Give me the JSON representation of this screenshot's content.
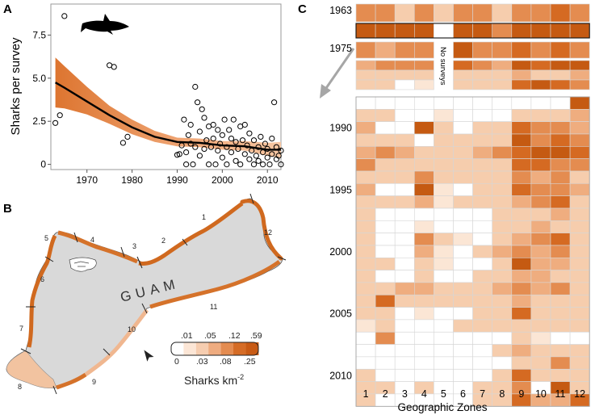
{
  "chart_data": [
    {
      "panel": "A",
      "type": "scatter",
      "title": "",
      "xlabel": "",
      "ylabel": "Sharks per survey",
      "xlim": [
        1962,
        2013
      ],
      "ylim": [
        -0.3,
        9.3
      ],
      "xticks": [
        1970,
        1980,
        1990,
        2000,
        2010
      ],
      "yticks": [
        0,
        2.5,
        5,
        7.5
      ],
      "ytick_labels": [
        "0",
        "2.5",
        "5.0",
        "7.5"
      ],
      "points": [
        [
          1963,
          2.4
        ],
        [
          1964,
          2.85
        ],
        [
          1965,
          8.6
        ],
        [
          1975,
          5.75
        ],
        [
          1976,
          5.65
        ],
        [
          1978,
          1.25
        ],
        [
          1979,
          1.6
        ],
        [
          1990,
          0.55
        ],
        [
          1990.5,
          0.6
        ],
        [
          1991,
          1.1
        ],
        [
          1991.5,
          2.6
        ],
        [
          1992,
          0.0
        ],
        [
          1992,
          0.7
        ],
        [
          1992.5,
          1.7
        ],
        [
          1993,
          1.2
        ],
        [
          1993,
          2.3
        ],
        [
          1993.5,
          0.0
        ],
        [
          1994,
          4.5
        ],
        [
          1994,
          1.0
        ],
        [
          1994.5,
          3.6
        ],
        [
          1995,
          0.5
        ],
        [
          1995,
          1.9
        ],
        [
          1995.5,
          3.2
        ],
        [
          1996,
          0.9
        ],
        [
          1996,
          2.7
        ],
        [
          1996.5,
          1.4
        ],
        [
          1997,
          0.0
        ],
        [
          1997,
          2.2
        ],
        [
          1997.5,
          1.0
        ],
        [
          1998,
          1.5
        ],
        [
          1998,
          2.3
        ],
        [
          1998.5,
          0.0
        ],
        [
          1999,
          0.8
        ],
        [
          1999,
          2.0
        ],
        [
          1999.5,
          1.2
        ],
        [
          2000,
          0.4
        ],
        [
          2000,
          1.7
        ],
        [
          2000.5,
          2.6
        ],
        [
          2001,
          0.0
        ],
        [
          2001,
          1.0
        ],
        [
          2001.5,
          2.0
        ],
        [
          2002,
          0.7
        ],
        [
          2002,
          1.5
        ],
        [
          2002.5,
          2.6
        ],
        [
          2003,
          0.2
        ],
        [
          2003,
          1.3
        ],
        [
          2003.5,
          0.9
        ],
        [
          2004,
          2.2
        ],
        [
          2004,
          0.0
        ],
        [
          2004.5,
          1.4
        ],
        [
          2005,
          0.6
        ],
        [
          2005,
          2.3
        ],
        [
          2005.5,
          1.1
        ],
        [
          2006,
          0.3
        ],
        [
          2006,
          1.8
        ],
        [
          2006.5,
          0.8
        ],
        [
          2007,
          0.0
        ],
        [
          2007,
          1.4
        ],
        [
          2007.5,
          0.5
        ],
        [
          2008,
          1.0
        ],
        [
          2008,
          0.2
        ],
        [
          2008.5,
          1.6
        ],
        [
          2009,
          0.7
        ],
        [
          2009,
          0.0
        ],
        [
          2009.5,
          1.2
        ],
        [
          2010,
          0.4
        ],
        [
          2010,
          0.9
        ],
        [
          2010.5,
          0.0
        ],
        [
          2011,
          1.5
        ],
        [
          2011,
          0.6
        ],
        [
          2011.5,
          3.6
        ],
        [
          2012,
          0.3
        ],
        [
          2012,
          1.0
        ],
        [
          2012.5,
          0.5
        ],
        [
          2013,
          0.8
        ],
        [
          2013,
          0.0
        ]
      ],
      "fit_x": [
        1963,
        1965,
        1970,
        1975,
        1980,
        1985,
        1990,
        1995,
        2000,
        2005,
        2010,
        2013
      ],
      "fit_y": [
        4.75,
        4.45,
        3.65,
        2.85,
        2.15,
        1.6,
        1.3,
        1.25,
        1.1,
        1.05,
        0.85,
        0.85
      ],
      "band_lower": [
        3.3,
        3.25,
        2.9,
        2.35,
        1.75,
        1.3,
        1.05,
        1.0,
        0.85,
        0.8,
        0.5,
        0.4
      ],
      "band_upper": [
        6.2,
        5.7,
        4.5,
        3.4,
        2.6,
        1.95,
        1.55,
        1.5,
        1.35,
        1.35,
        1.25,
        1.3
      ],
      "colors": {
        "band": "#f0a878",
        "band_edge": "#dd7530",
        "fit": "#000000",
        "point": "#000000"
      },
      "shark_silhouette": "shark-icon"
    },
    {
      "panel": "C",
      "type": "heatmap",
      "xlabel": "Geographic Zones",
      "x_categories": [
        "1",
        "2",
        "3",
        "4",
        "5",
        "6",
        "7",
        "8",
        "9",
        "10",
        "11",
        "12"
      ],
      "rows": [
        {
          "year": 1963,
          "label": "1963",
          "values": [
            0.22,
            0.18,
            0.05,
            0.18,
            0.05,
            0.22,
            0.18,
            0.05,
            0.2,
            0.18,
            0.25,
            0.22
          ]
        },
        {
          "year": 1964,
          "label": "",
          "highlighted": true,
          "values": [
            0.45,
            0.45,
            0.45,
            0.45,
            -1,
            0.45,
            0.45,
            0.2,
            0.45,
            0.45,
            0.45,
            0.45
          ]
        },
        {
          "year": 1975,
          "label": "1975",
          "values": [
            0.22,
            0.15,
            0.18,
            0.2,
            -2,
            0.35,
            0.18,
            0.2,
            0.28,
            0.22,
            0.3,
            0.2
          ]
        },
        {
          "year": 1976,
          "label": "",
          "values": [
            0.15,
            0.18,
            0.2,
            0.22,
            -2,
            0.25,
            0.2,
            0.15,
            0.4,
            0.3,
            0.35,
            0.4
          ]
        },
        {
          "year": 1977,
          "label": "",
          "values": [
            0.1,
            0.08,
            0.05,
            0.08,
            -2,
            0.08,
            0.05,
            0.08,
            0.12,
            0.08,
            0.1,
            0.12
          ]
        },
        {
          "year": 1978,
          "label": "",
          "values": [
            0.1,
            0.08,
            0.0,
            0.03,
            -2,
            0.05,
            0.05,
            0.06,
            0.3,
            0.4,
            0.25,
            0.2
          ]
        },
        {
          "year": 1988,
          "label": "",
          "values": [
            0.0,
            0.0,
            0.0,
            0.0,
            0.0,
            0.0,
            0.0,
            0.0,
            0.0,
            0.0,
            0.0,
            0.4
          ]
        },
        {
          "year": 1989,
          "label": "",
          "values": [
            0.06,
            0.05,
            0.0,
            0.0,
            0.03,
            0.0,
            0.0,
            0.0,
            0.08,
            0.06,
            0.1,
            0.14
          ]
        },
        {
          "year": 1990,
          "label": "1990",
          "values": [
            0.12,
            0.0,
            0.0,
            0.4,
            0.05,
            0.0,
            0.1,
            0.08,
            0.25,
            0.2,
            0.22,
            0.15
          ]
        },
        {
          "year": 1991,
          "label": "",
          "values": [
            0.04,
            0.05,
            0.06,
            0.0,
            0.04,
            0.06,
            0.05,
            0.08,
            0.35,
            0.2,
            0.3,
            0.2
          ]
        },
        {
          "year": 1992,
          "label": "",
          "values": [
            0.15,
            0.2,
            0.12,
            0.1,
            0.05,
            0.06,
            0.12,
            0.2,
            0.3,
            0.35,
            0.38,
            0.25
          ]
        },
        {
          "year": 1993,
          "label": "",
          "values": [
            0.18,
            0.08,
            0.06,
            0.08,
            0.05,
            0.06,
            0.08,
            0.1,
            0.28,
            0.25,
            0.2,
            0.18
          ]
        },
        {
          "year": 1994,
          "label": "",
          "values": [
            0.1,
            0.05,
            0.06,
            0.2,
            0.04,
            0.05,
            0.06,
            0.08,
            0.2,
            0.15,
            0.18,
            0.1
          ]
        },
        {
          "year": 1995,
          "label": "1995",
          "values": [
            0.15,
            0.0,
            0.0,
            0.35,
            0.03,
            0.0,
            0.04,
            0.1,
            0.25,
            0.2,
            0.22,
            0.15
          ]
        },
        {
          "year": 1996,
          "label": "",
          "values": [
            0.06,
            0.04,
            0.05,
            0.15,
            0.03,
            0.05,
            0.04,
            0.06,
            0.15,
            0.2,
            0.3,
            0.1
          ]
        },
        {
          "year": 1997,
          "label": "",
          "values": [
            0.04,
            0.0,
            0.0,
            0.0,
            0.0,
            0.0,
            0.0,
            0.04,
            0.08,
            0.1,
            0.12,
            0.05
          ]
        },
        {
          "year": 1998,
          "label": "",
          "values": [
            0.05,
            0.0,
            0.0,
            0.03,
            0.0,
            0.0,
            0.0,
            0.05,
            0.08,
            0.12,
            0.1,
            0.06
          ]
        },
        {
          "year": 1999,
          "label": "",
          "values": [
            0.1,
            0.0,
            0.0,
            0.2,
            0.05,
            0.03,
            0.0,
            0.06,
            0.15,
            0.2,
            0.25,
            0.1
          ]
        },
        {
          "year": 2000,
          "label": "2000",
          "values": [
            0.08,
            0.0,
            0.0,
            0.12,
            0.03,
            0.0,
            0.04,
            0.15,
            0.2,
            0.15,
            0.18,
            0.1
          ]
        },
        {
          "year": 2001,
          "label": "",
          "values": [
            0.06,
            0.05,
            0.0,
            0.1,
            0.03,
            0.0,
            0.0,
            0.1,
            0.35,
            0.15,
            0.12,
            0.08
          ]
        },
        {
          "year": 2002,
          "label": "",
          "values": [
            0.05,
            0.0,
            0.0,
            0.08,
            0.0,
            0.0,
            0.05,
            0.08,
            0.15,
            0.12,
            0.1,
            0.06
          ]
        },
        {
          "year": 2003,
          "label": "",
          "values": [
            0.06,
            0.08,
            0.12,
            0.15,
            0.05,
            0.05,
            0.1,
            0.12,
            0.18,
            0.12,
            0.2,
            0.1
          ]
        },
        {
          "year": 2004,
          "label": "",
          "values": [
            0.05,
            0.3,
            0.05,
            0.05,
            0.05,
            0.06,
            0.1,
            0.08,
            0.12,
            0.1,
            0.08,
            0.05
          ]
        },
        {
          "year": 2005,
          "label": "2005",
          "values": [
            0.04,
            0.06,
            0.0,
            0.03,
            0.0,
            0.0,
            0.05,
            0.1,
            0.25,
            0.08,
            0.06,
            0.05
          ]
        },
        {
          "year": 2006,
          "label": "",
          "values": [
            0.03,
            0.05,
            0.0,
            0.0,
            0.0,
            0.04,
            0.05,
            0.06,
            0.1,
            0.05,
            0.08,
            0.05
          ]
        },
        {
          "year": 2007,
          "label": "",
          "values": [
            0.0,
            0.2,
            0.0,
            0.0,
            0.0,
            0.0,
            0.0,
            0.0,
            0.05,
            0.03,
            0.0,
            0.0
          ]
        },
        {
          "year": 2008,
          "label": "",
          "values": [
            0.0,
            0.0,
            0.0,
            0.0,
            0.0,
            0.0,
            0.0,
            0.04,
            0.12,
            0.06,
            0.08,
            0.04
          ]
        },
        {
          "year": 2009,
          "label": "",
          "values": [
            0.0,
            0.0,
            0.0,
            0.0,
            0.0,
            0.0,
            0.0,
            0.0,
            0.1,
            0.1,
            0.2,
            0.05
          ]
        },
        {
          "year": 2010,
          "label": "2010",
          "values": [
            0.05,
            0.0,
            0.0,
            0.0,
            0.0,
            0.0,
            0.0,
            0.06,
            0.3,
            0.08,
            0.06,
            0.04
          ]
        },
        {
          "year": 2011,
          "label": "",
          "values": [
            0.06,
            0.04,
            0.0,
            0.05,
            0.0,
            0.0,
            0.04,
            0.05,
            0.2,
            0.0,
            0.35,
            0.06
          ]
        },
        {
          "year": 2012,
          "label": "",
          "values": [
            0.08,
            0.0,
            0.0,
            0.0,
            0.0,
            0.0,
            0.06,
            0.1,
            0.25,
            0.12,
            0.15,
            0.3
          ]
        }
      ],
      "no_surveys_label": "No surveys",
      "color_scale": [
        "#ffffff",
        "#fbe6d5",
        "#f6cdad",
        "#efad7f",
        "#e48c50",
        "#d56a22",
        "#c55a12"
      ]
    }
  ],
  "panel_labels": {
    "a": "A",
    "b": "B",
    "c": "C"
  },
  "map": {
    "island_name": "GUAM",
    "zone_labels": [
      "1",
      "2",
      "3",
      "4",
      "5",
      "6",
      "7",
      "8",
      "9",
      "10",
      "11",
      "12"
    ],
    "legend_title": "Sharks km",
    "legend_exponent": "-2",
    "legend_top_ticks": [
      ".01",
      ".05",
      ".12",
      ".59"
    ],
    "legend_bottom_ticks": [
      "0",
      ".03",
      ".08",
      ".25"
    ],
    "legend_colors": [
      "#ffffff",
      "#fce6d6",
      "#f6cdb0",
      "#efac80",
      "#e48c51",
      "#d56c26",
      "#c85a14"
    ],
    "north_icon": "north-arrow-icon",
    "colors": {
      "land": "#d9d9d9",
      "coast": "#d0691f",
      "coast_light": "#f2c3a0"
    }
  }
}
